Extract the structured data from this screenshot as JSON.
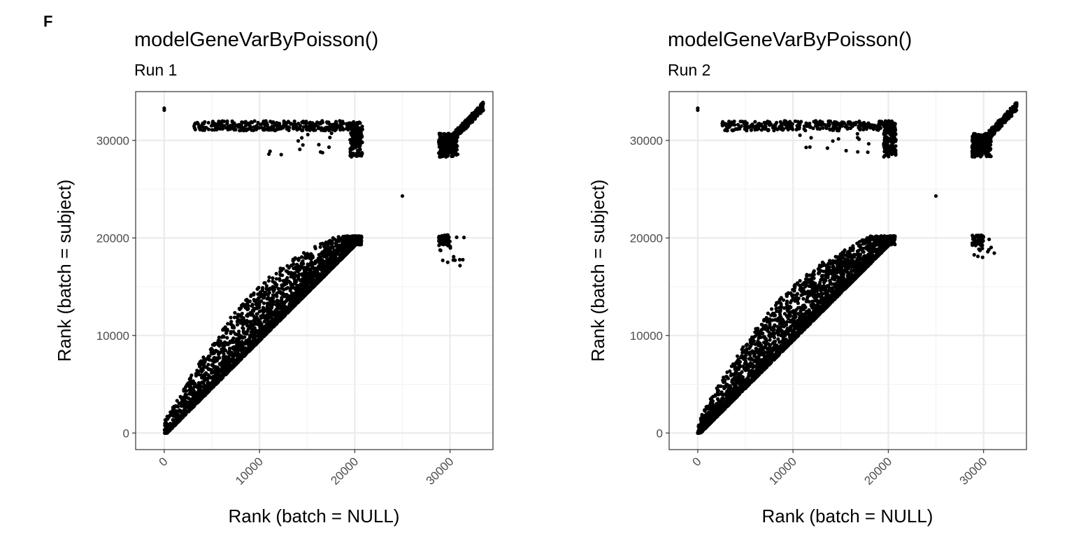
{
  "panel_letter": "F",
  "chart_data": [
    {
      "type": "scatter",
      "title": "modelGeneVarByPoisson()",
      "subtitle": "Run 1",
      "xlabel": "Rank (batch = NULL)",
      "ylabel": "Rank (batch = subject)",
      "xlim": [
        -3000,
        34500
      ],
      "ylim": [
        -1700,
        35000
      ],
      "x_ticks": [
        0,
        10000,
        20000,
        30000
      ],
      "y_ticks": [
        0,
        10000,
        20000,
        30000
      ],
      "grid": true,
      "clusters": [
        {
          "name": "",
          "x_range": [
            0,
            20700
          ],
          "y_range": [
            0,
            20200
          ],
          "note_pattern": "diagonal-band"
        },
        {
          "name": "",
          "x_range": [
            3000,
            20800
          ],
          "y_range": [
            28300,
            32200
          ],
          "note_pattern": "top-band"
        },
        {
          "name": "",
          "x_range": [
            28800,
            33500
          ],
          "y_range": [
            28300,
            33500
          ],
          "note_pattern": "top-right"
        },
        {
          "name": "",
          "x_range": [
            28800,
            31500
          ],
          "y_range": [
            17000,
            20300
          ],
          "note_pattern": "right-mid"
        }
      ],
      "points": [
        [
          0,
          33300
        ],
        [
          0,
          33100
        ],
        [
          25000,
          24300
        ]
      ]
    },
    {
      "type": "scatter",
      "title": "modelGeneVarByPoisson()",
      "subtitle": "Run 2",
      "xlabel": "Rank (batch = NULL)",
      "ylabel": "Rank (batch = subject)",
      "xlim": [
        -3000,
        34500
      ],
      "ylim": [
        -1700,
        35000
      ],
      "x_ticks": [
        0,
        10000,
        20000,
        30000
      ],
      "y_ticks": [
        0,
        10000,
        20000,
        30000
      ],
      "grid": true,
      "clusters": [
        {
          "name": "",
          "x_range": [
            0,
            20700
          ],
          "y_range": [
            0,
            20200
          ],
          "note_pattern": "diagonal-band"
        },
        {
          "name": "",
          "x_range": [
            2500,
            20800
          ],
          "y_range": [
            28300,
            32200
          ],
          "note_pattern": "top-band"
        },
        {
          "name": "",
          "x_range": [
            28800,
            33500
          ],
          "y_range": [
            28300,
            33500
          ],
          "note_pattern": "top-right"
        },
        {
          "name": "",
          "x_range": [
            28800,
            31500
          ],
          "y_range": [
            17800,
            20300
          ],
          "note_pattern": "right-mid"
        }
      ],
      "points": [
        [
          0,
          33300
        ],
        [
          0,
          33100
        ],
        [
          25000,
          24300
        ]
      ]
    }
  ]
}
